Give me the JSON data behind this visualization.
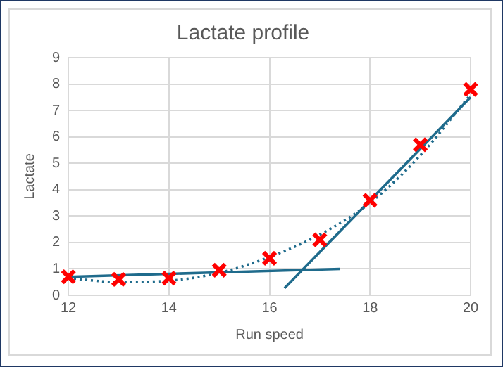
{
  "chart_data": {
    "type": "scatter",
    "title": "Lactate profile",
    "xlabel": "Run speed",
    "ylabel": "Lactate",
    "xlim": [
      12,
      20
    ],
    "ylim": [
      0,
      9
    ],
    "xticks": [
      12,
      14,
      16,
      18,
      20
    ],
    "yticks": [
      0,
      1,
      2,
      3,
      4,
      5,
      6,
      7,
      8,
      9
    ],
    "grid": true,
    "legend": false,
    "series": [
      {
        "type": "line",
        "color": "#1f6b8c",
        "x": [
          12,
          17.4
        ],
        "values": [
          0.7,
          1.0
        ],
        "marker": "none",
        "line_style": "solid"
      },
      {
        "type": "line",
        "color": "#1f6b8c",
        "x": [
          16.3,
          20
        ],
        "values": [
          0.27,
          7.5
        ],
        "marker": "none",
        "line_style": "solid"
      },
      {
        "type": "line",
        "color": "#1f6b8c",
        "x": [
          12,
          13,
          14,
          15,
          16,
          17,
          18,
          19,
          20
        ],
        "values": [
          0.65,
          0.5,
          0.55,
          0.85,
          1.45,
          2.3,
          3.5,
          5.3,
          7.6
        ],
        "marker": "none",
        "line_style": "dotted"
      },
      {
        "type": "scatter",
        "color": "#ff0000",
        "x": [
          12,
          13,
          14,
          15,
          16,
          17,
          18,
          19,
          20
        ],
        "values": [
          0.7,
          0.6,
          0.65,
          0.95,
          1.4,
          2.1,
          3.6,
          5.7,
          7.8
        ],
        "marker": "cross"
      }
    ]
  }
}
